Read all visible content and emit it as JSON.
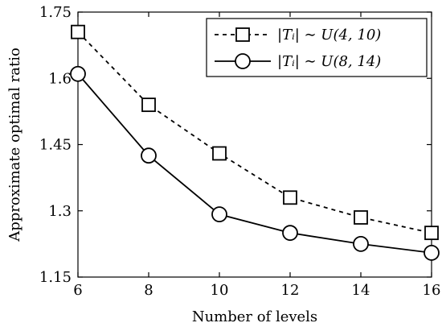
{
  "chart_data": {
    "type": "line",
    "title": "",
    "xlabel": "Number of levels",
    "ylabel": "Approximate optimal ratio",
    "x": [
      6,
      8,
      10,
      12,
      14,
      16
    ],
    "xlim": [
      6,
      16
    ],
    "ylim": [
      1.15,
      1.75
    ],
    "xticks": [
      6,
      8,
      10,
      12,
      14,
      16
    ],
    "yticks": [
      1.15,
      1.3,
      1.45,
      1.6,
      1.75
    ],
    "xtick_labels": [
      "6",
      "8",
      "10",
      "12",
      "14",
      "16"
    ],
    "ytick_labels": [
      "1.15",
      "1.3",
      "1.45",
      "1.6",
      "1.75"
    ],
    "grid": false,
    "legend_position": "top-right",
    "series": [
      {
        "name": "|T_i| ~ U(4, 10)",
        "legend_label": "|Tᵢ| ∼ U(4, 10)",
        "values": [
          1.705,
          1.54,
          1.43,
          1.33,
          1.285,
          1.25
        ],
        "line_style": "dashed",
        "marker": "square",
        "color": "#000000"
      },
      {
        "name": "|T_i| ~ U(8, 14)",
        "legend_label": "|Tᵢ| ∼ U(8, 14)",
        "values": [
          1.61,
          1.425,
          1.292,
          1.25,
          1.225,
          1.205
        ],
        "line_style": "solid",
        "marker": "circle",
        "color": "#000000"
      }
    ]
  }
}
